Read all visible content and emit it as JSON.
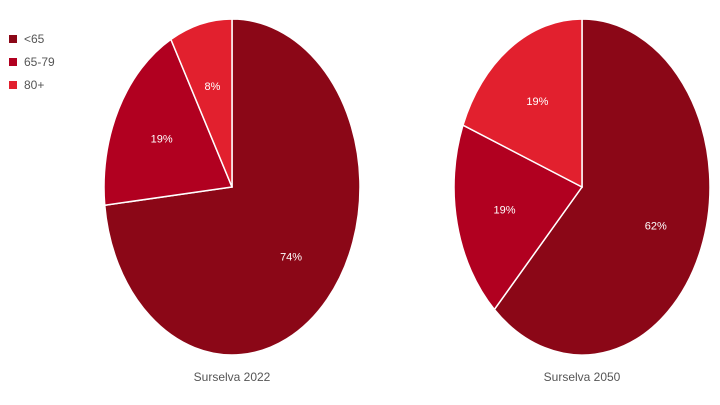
{
  "legend": [
    {
      "label": "<65",
      "color": "#8b0717"
    },
    {
      "label": "65-79",
      "color": "#b10020"
    },
    {
      "label": "80+",
      "color": "#e2202e"
    }
  ],
  "chart_data": [
    {
      "type": "pie",
      "title": "Surselva 2022",
      "slices": [
        {
          "label": "<65",
          "value": 74,
          "display": "74%",
          "color": "#8b0717"
        },
        {
          "label": "65-79",
          "value": 19,
          "display": "19%",
          "color": "#b10020"
        },
        {
          "label": "80+",
          "value": 8,
          "display": "8%",
          "color": "#e2202e"
        }
      ]
    },
    {
      "type": "pie",
      "title": "Surselva 2050",
      "slices": [
        {
          "label": "<65",
          "value": 62,
          "display": "62%",
          "color": "#8b0717"
        },
        {
          "label": "65-79",
          "value": 19,
          "display": "19%",
          "color": "#b10020"
        },
        {
          "label": "80+",
          "value": 19,
          "display": "19%",
          "color": "#e2202e"
        }
      ]
    }
  ]
}
